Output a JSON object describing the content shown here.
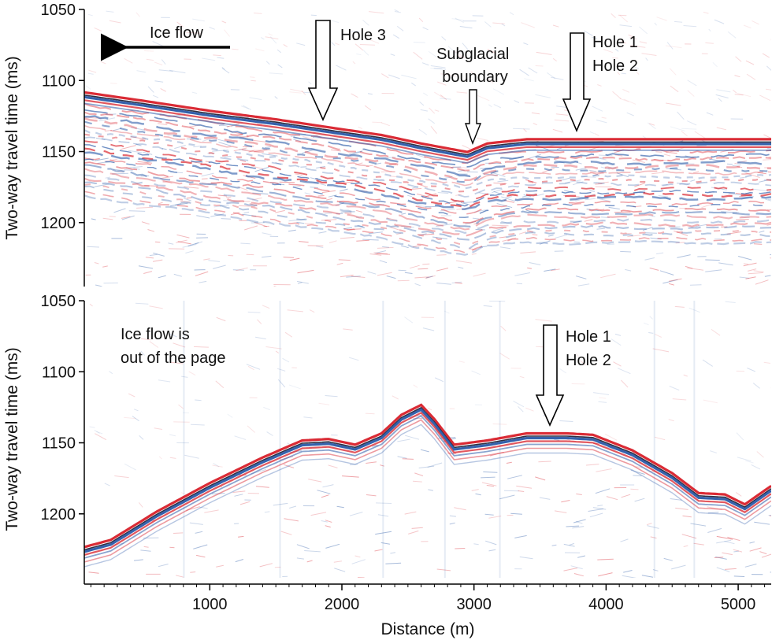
{
  "chart_data": [
    {
      "type": "other",
      "panel": "upper",
      "ylabel": "Two-way travel time (ms)",
      "y_ticks": [
        1050,
        1100,
        1150,
        1200
      ],
      "ylim": [
        1050,
        1245
      ],
      "xlim": [
        50,
        5250
      ],
      "reflector_boundary": [
        {
          "x": 50,
          "y": 1110
        },
        {
          "x": 500,
          "y": 1116
        },
        {
          "x": 1000,
          "y": 1123
        },
        {
          "x": 1500,
          "y": 1129
        },
        {
          "x": 2000,
          "y": 1136
        },
        {
          "x": 2300,
          "y": 1140
        },
        {
          "x": 2600,
          "y": 1146
        },
        {
          "x": 2950,
          "y": 1152
        },
        {
          "x": 3100,
          "y": 1146
        },
        {
          "x": 3400,
          "y": 1143
        },
        {
          "x": 4000,
          "y": 1143
        },
        {
          "x": 5250,
          "y": 1143
        }
      ],
      "annotations": [
        {
          "text": "Ice flow"
        },
        {
          "text": "Hole 3"
        },
        {
          "text": "Subglacial boundary",
          "lines": [
            "Subglacial",
            "boundary"
          ]
        },
        {
          "text": "Hole 1 Hole 2",
          "lines": [
            "Hole 1",
            "Hole 2"
          ]
        }
      ]
    },
    {
      "type": "other",
      "panel": "lower",
      "ylabel": "Two-way travel time (ms)",
      "xlabel": "Distance (m)",
      "y_ticks": [
        1050,
        1100,
        1150,
        1200
      ],
      "x_ticks": [
        1000,
        2000,
        3000,
        4000,
        5000
      ],
      "ylim": [
        1050,
        1245
      ],
      "xlim": [
        50,
        5250
      ],
      "reflector_boundary": [
        {
          "x": 50,
          "y": 1225
        },
        {
          "x": 250,
          "y": 1220
        },
        {
          "x": 600,
          "y": 1200
        },
        {
          "x": 1000,
          "y": 1180
        },
        {
          "x": 1400,
          "y": 1162
        },
        {
          "x": 1700,
          "y": 1150
        },
        {
          "x": 1900,
          "y": 1149
        },
        {
          "x": 2100,
          "y": 1153
        },
        {
          "x": 2300,
          "y": 1145
        },
        {
          "x": 2450,
          "y": 1132
        },
        {
          "x": 2600,
          "y": 1125
        },
        {
          "x": 2700,
          "y": 1135
        },
        {
          "x": 2850,
          "y": 1153
        },
        {
          "x": 3100,
          "y": 1150
        },
        {
          "x": 3400,
          "y": 1145
        },
        {
          "x": 3700,
          "y": 1145
        },
        {
          "x": 3900,
          "y": 1146
        },
        {
          "x": 4200,
          "y": 1157
        },
        {
          "x": 4500,
          "y": 1173
        },
        {
          "x": 4700,
          "y": 1187
        },
        {
          "x": 4900,
          "y": 1188
        },
        {
          "x": 5050,
          "y": 1195
        },
        {
          "x": 5250,
          "y": 1182
        }
      ],
      "annotations": [
        {
          "text": "Ice flow is out of the page",
          "lines": [
            "Ice flow is",
            "out of the page"
          ]
        },
        {
          "text": "Hole 1 Hole 2",
          "lines": [
            "Hole 1",
            "Hole 2"
          ]
        }
      ]
    }
  ],
  "colors": {
    "positive": "#d8202a",
    "negative": "#2a5aa8",
    "background": "#ffffff"
  }
}
